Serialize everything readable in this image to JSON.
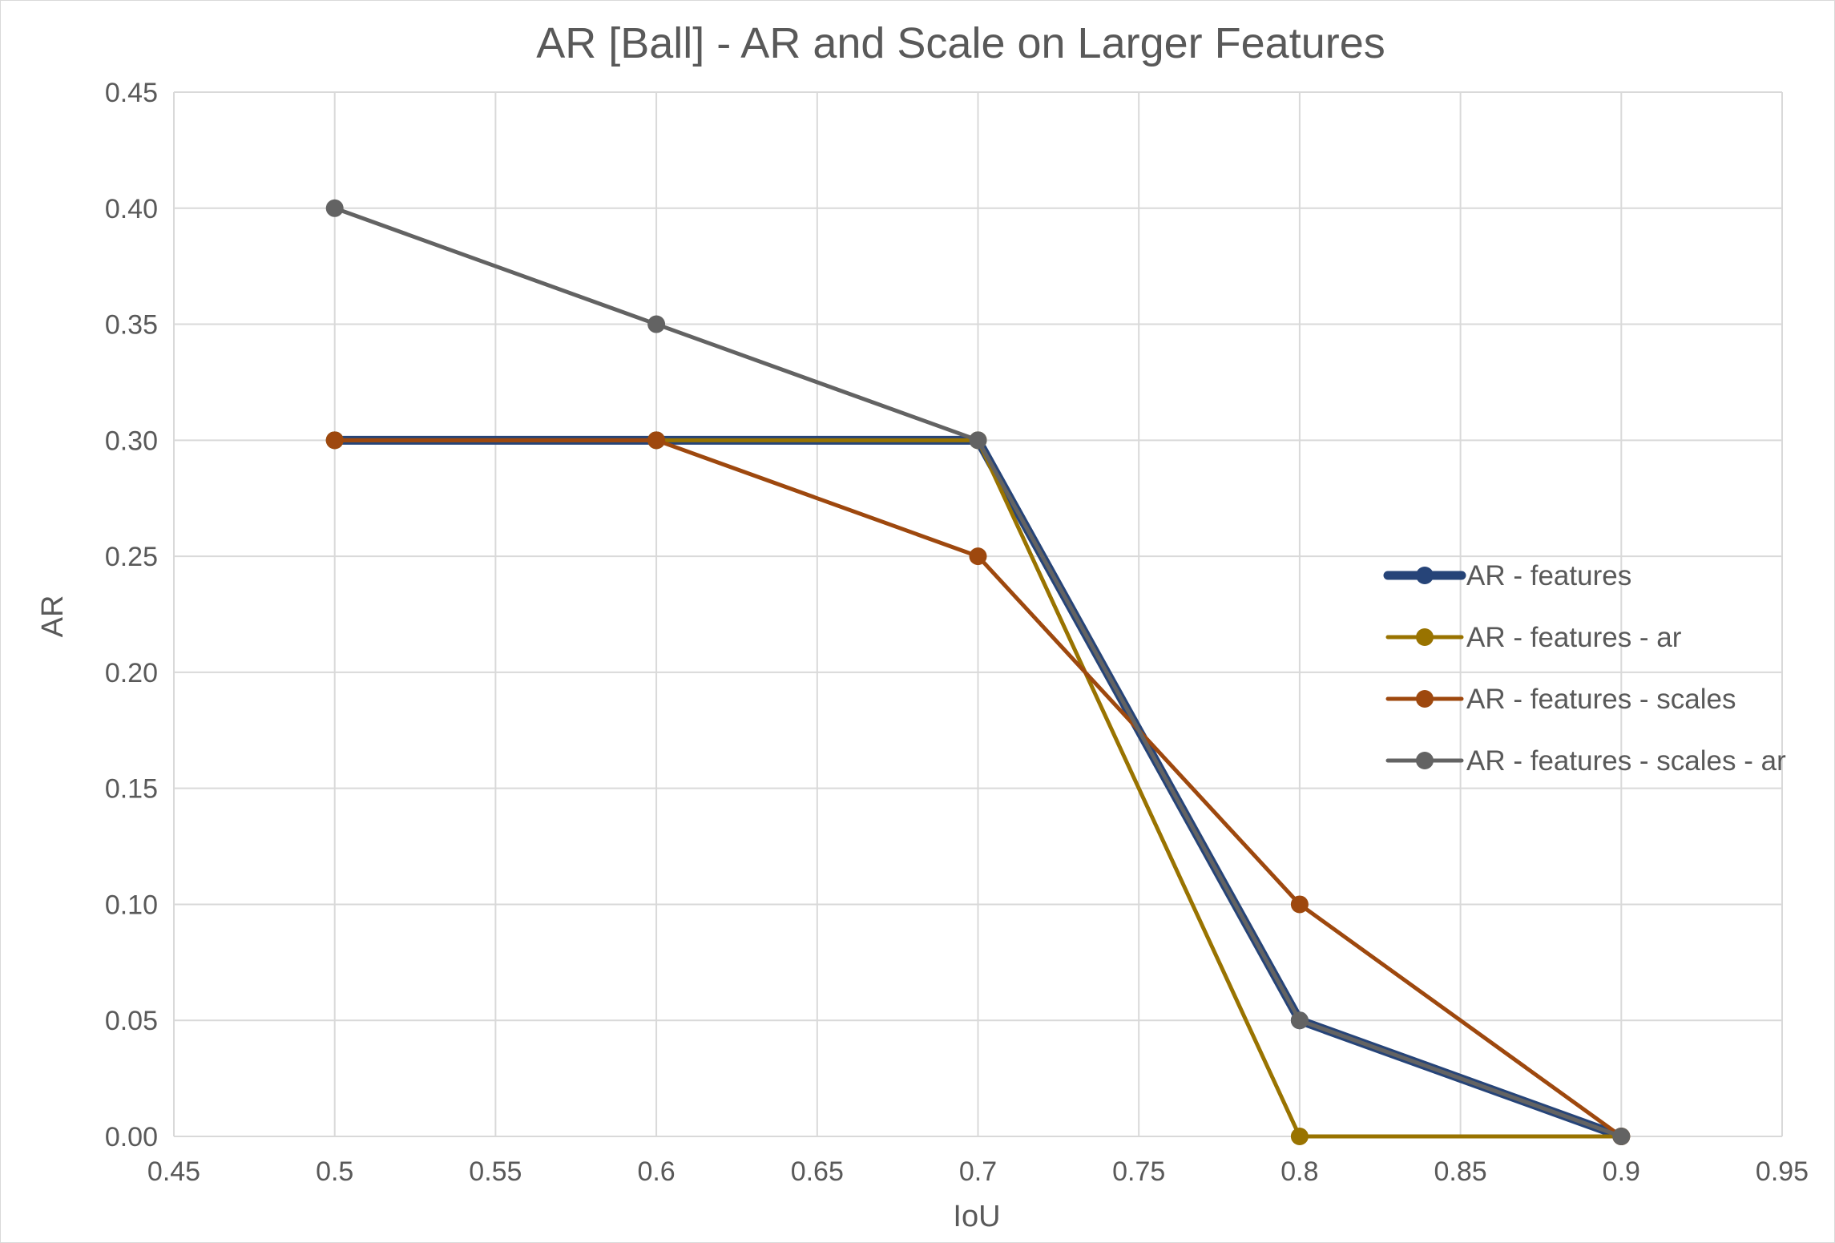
{
  "chart_data": {
    "type": "line",
    "title": "AR [Ball] - AR and Scale on Larger Features",
    "xlabel": "IoU",
    "ylabel": "AR",
    "xlim": [
      0.45,
      0.95
    ],
    "ylim": [
      0,
      0.45
    ],
    "x_ticks": [
      0.45,
      0.5,
      0.55,
      0.6,
      0.65,
      0.7,
      0.75,
      0.8,
      0.85,
      0.9,
      0.95
    ],
    "x_tick_labels": [
      "0.45",
      "0.5",
      "0.55",
      "0.6",
      "0.65",
      "0.7",
      "0.75",
      "0.8",
      "0.85",
      "0.9",
      "0.95"
    ],
    "y_ticks": [
      0,
      0.05,
      0.1,
      0.15,
      0.2,
      0.25,
      0.3,
      0.35,
      0.4,
      0.45
    ],
    "y_tick_labels": [
      "0.00",
      "0.05",
      "0.10",
      "0.15",
      "0.20",
      "0.25",
      "0.30",
      "0.35",
      "0.40",
      "0.45"
    ],
    "grid": true,
    "legend_position": "right",
    "x": [
      0.5,
      0.6,
      0.7,
      0.8,
      0.9
    ],
    "series": [
      {
        "name": "AR - features",
        "values": [
          0.3,
          0.3,
          0.3,
          0.05,
          0
        ],
        "color": "#264478"
      },
      {
        "name": "AR - features - ar",
        "values": [
          0.3,
          0.3,
          0.3,
          0,
          0
        ],
        "color": "#997300"
      },
      {
        "name": "AR - features - scales",
        "values": [
          0.3,
          0.3,
          0.25,
          0.1,
          0
        ],
        "color": "#9E480E"
      },
      {
        "name": "AR - features - scales - ar",
        "values": [
          0.4,
          0.35,
          0.3,
          0.05,
          0
        ],
        "color": "#636363"
      }
    ]
  }
}
